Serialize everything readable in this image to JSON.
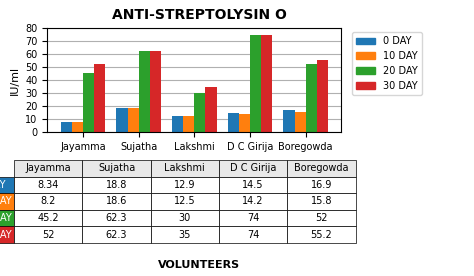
{
  "chart_data": {
    "type": "bar",
    "title": "ANTI-STREPTOLYSIN O",
    "x_label": "VOLUNTEERS",
    "y_label": "IU/ml",
    "categories": [
      "Jayamma",
      "Sujatha",
      "Lakshmi",
      "D C Girija",
      "Boregowda"
    ],
    "series": [
      {
        "name": "0 DAY",
        "values": [
          8.34,
          18.8,
          12.9,
          14.5,
          16.9
        ]
      },
      {
        "name": "10 DAY",
        "values": [
          8.2,
          18.6,
          12.5,
          14.2,
          15.8
        ]
      },
      {
        "name": "20 DAY",
        "values": [
          45.2,
          62.3,
          30,
          74,
          52
        ]
      },
      {
        "name": "30 DAY",
        "values": [
          52,
          62.3,
          35,
          74,
          55.2
        ]
      }
    ],
    "ylim": [
      0,
      80
    ],
    "yticks": [
      0,
      10,
      20,
      30,
      40,
      50,
      60,
      70,
      80
    ],
    "grid": true,
    "legend": "upper left"
  }
}
